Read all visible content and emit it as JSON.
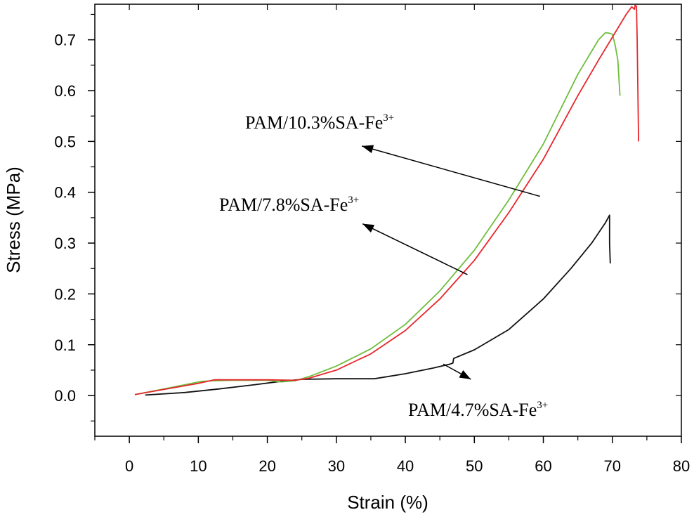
{
  "chart_data": {
    "type": "line",
    "title": "",
    "xlabel": "Strain (%)",
    "ylabel": "Stress (MPa)",
    "xlim": [
      -5,
      80
    ],
    "ylim": [
      -0.08,
      0.77
    ],
    "x_ticks": [
      0,
      10,
      20,
      30,
      40,
      50,
      60,
      70,
      80
    ],
    "y_ticks": [
      0.0,
      0.1,
      0.2,
      0.3,
      0.4,
      0.5,
      0.6,
      0.7
    ],
    "x_tick_labels": [
      "0",
      "10",
      "20",
      "30",
      "40",
      "50",
      "60",
      "70",
      "80"
    ],
    "y_tick_labels": [
      "0.0",
      "0.1",
      "0.2",
      "0.3",
      "0.4",
      "0.5",
      "0.6",
      "0.7"
    ],
    "grid": false,
    "legend": "none",
    "series": [
      {
        "name": "PAM/10.3%SA-Fe3+",
        "color": "#e8262b",
        "x": [
          0.8,
          5,
          10,
          12.3,
          15,
          20,
          24,
          26,
          30,
          35,
          40,
          45,
          50,
          55,
          60,
          65,
          68,
          70,
          72,
          72.8,
          73.2,
          73.3,
          73.5,
          73.6,
          73.8
        ],
        "y": [
          0.002,
          0.012,
          0.024,
          0.031,
          0.031,
          0.031,
          0.03,
          0.034,
          0.05,
          0.082,
          0.128,
          0.19,
          0.266,
          0.36,
          0.465,
          0.59,
          0.66,
          0.705,
          0.75,
          0.765,
          0.76,
          0.768,
          0.766,
          0.7,
          0.5
        ]
      },
      {
        "name": "PAM/7.8%SA-Fe3+",
        "color": "#6ebe3c",
        "x": [
          0.8,
          5,
          10.5,
          12,
          15,
          20,
          22,
          24,
          26,
          30,
          35,
          40,
          45,
          50,
          55,
          60,
          65,
          68,
          69,
          69.5,
          70,
          70.4,
          70.8,
          71.1
        ],
        "y": [
          0.002,
          0.013,
          0.028,
          0.029,
          0.03,
          0.03,
          0.027,
          0.029,
          0.037,
          0.058,
          0.092,
          0.14,
          0.206,
          0.286,
          0.385,
          0.495,
          0.632,
          0.7,
          0.714,
          0.713,
          0.711,
          0.69,
          0.66,
          0.59
        ]
      },
      {
        "name": "PAM/4.7%SA-Fe3+",
        "color": "#111111",
        "x": [
          2.3,
          8,
          13,
          18,
          22,
          25,
          30,
          35.5,
          40,
          44,
          46.5,
          46.9,
          47,
          50,
          55,
          60,
          64,
          67,
          69,
          69.6,
          69.6,
          69.7
        ],
        "y": [
          0.001,
          0.006,
          0.013,
          0.021,
          0.028,
          0.032,
          0.033,
          0.033,
          0.043,
          0.054,
          0.062,
          0.064,
          0.073,
          0.09,
          0.13,
          0.19,
          0.25,
          0.3,
          0.34,
          0.355,
          0.3,
          0.26
        ]
      }
    ],
    "annotations": [
      {
        "base": "PAM/10.3%SA-Fe",
        "sup": "3+",
        "arrow_from": [
          59.5,
          0.392
        ],
        "arrow_to": [
          33.7,
          0.491
        ]
      },
      {
        "base": "PAM/7.8%SA-Fe",
        "sup": "3+",
        "arrow_from": [
          49,
          0.238
        ],
        "arrow_to": [
          33.8,
          0.338
        ]
      },
      {
        "base": "PAM/4.7%SA-Fe",
        "sup": "3+",
        "arrow_from": [
          45.5,
          0.062
        ],
        "arrow_to": [
          49.5,
          0.032
        ]
      }
    ]
  }
}
